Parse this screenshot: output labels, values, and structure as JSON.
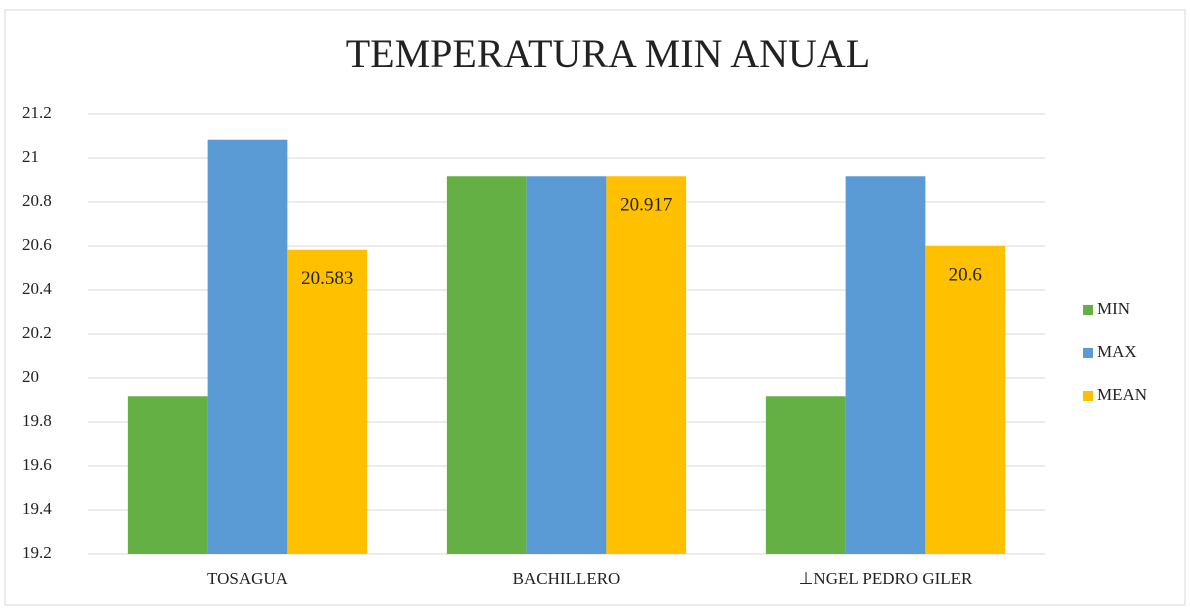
{
  "chart_data": {
    "type": "bar",
    "title": "TEMPERATURA MIN ANUAL",
    "categories": [
      "TOSAGUA",
      "BACHILLERO",
      "⊥NGEL PEDRO GILER"
    ],
    "series": [
      {
        "name": "MIN",
        "color": "#64b044",
        "values": [
          19.917,
          20.917,
          19.917
        ]
      },
      {
        "name": "MAX",
        "color": "#5b9bd5",
        "values": [
          21.083,
          20.917,
          20.917
        ]
      },
      {
        "name": "MEAN",
        "color": "#ffc000",
        "values": [
          20.583,
          20.917,
          20.6
        ],
        "show_labels": true
      }
    ],
    "ylim": [
      19.2,
      21.2
    ],
    "yticks": [
      19.2,
      19.4,
      19.6,
      19.8,
      20,
      20.2,
      20.4,
      20.6,
      20.8,
      21,
      21.2
    ],
    "grid": true,
    "legend": "right"
  }
}
